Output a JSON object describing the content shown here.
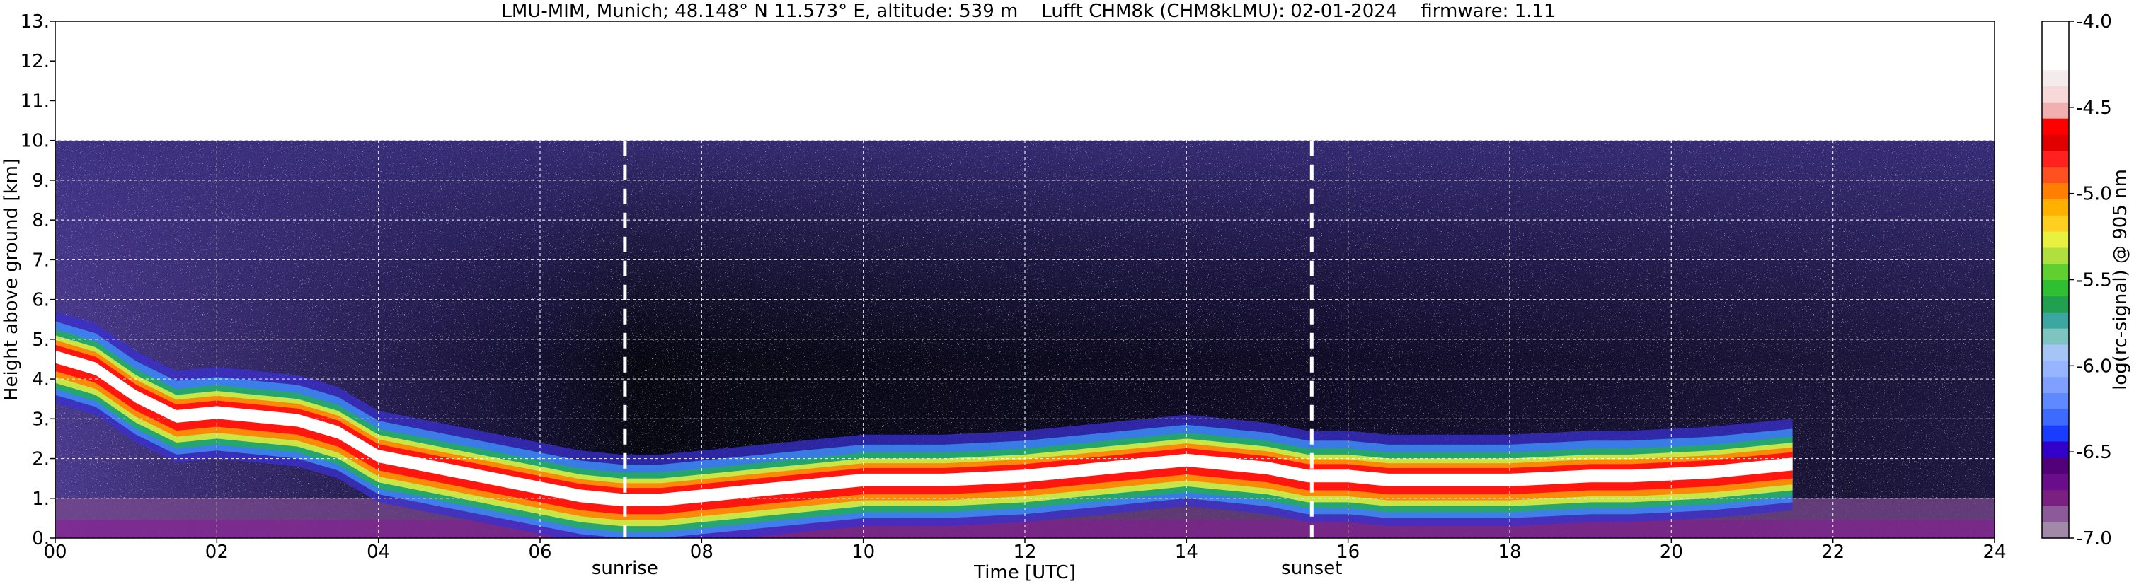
{
  "chart_data": {
    "type": "heatmap",
    "title": "LMU-MIM, Munich; 48.148° N 11.573° E, altitude: 539 m    Lufft CHM8k (CHM8kLMU): 02-01-2024    firmware: 1.11",
    "xlabel": "Time [UTC]",
    "ylabel": "Height above ground [km]",
    "xlim": [
      0,
      24
    ],
    "ylim": [
      0,
      13
    ],
    "x_ticks": [
      "00",
      "02",
      "04",
      "06",
      "08",
      "10",
      "12",
      "14",
      "16",
      "18",
      "20",
      "22",
      "24"
    ],
    "y_ticks": [
      "0.",
      "1.",
      "2.",
      "3.",
      "4.",
      "5.",
      "6.",
      "7.",
      "8.",
      "9.",
      "10.",
      "11.",
      "12.",
      "13."
    ],
    "grid": true,
    "data_top_km": 10,
    "colorbar": {
      "label": "log(rc-signal) @ 905 nm",
      "range": [
        -7.0,
        -4.0
      ],
      "ticks": [
        "-4.0",
        "-4.5",
        "-5.0",
        "-5.5",
        "-6.0",
        "-6.5",
        "-7.0"
      ],
      "colors": [
        "#a08aa8",
        "#8c5a98",
        "#7a2080",
        "#6a0d8c",
        "#52007a",
        "#3200c8",
        "#1a3cff",
        "#3f6aff",
        "#5f8aff",
        "#7fa0ff",
        "#96b4ff",
        "#a6c4f4",
        "#7fc4c0",
        "#3aa8a0",
        "#20a050",
        "#2ec030",
        "#60d030",
        "#b0e040",
        "#e8f040",
        "#ffd020",
        "#ffb000",
        "#ff8000",
        "#ff5020",
        "#ff2020",
        "#e00000",
        "#ff0000",
        "#f0b0b0",
        "#f8d8d8",
        "#f4ecec",
        "#ffffff",
        "#ffffff",
        "#ffffff"
      ]
    },
    "annotations": [
      {
        "text": "sunrise",
        "time": 7.05
      },
      {
        "text": "sunset",
        "time": 15.55
      }
    ],
    "layers": [
      {
        "name": "",
        "times": [
          0,
          0.5,
          1,
          1.5,
          2,
          2.5,
          3,
          3.5,
          4,
          4.5,
          5,
          5.5,
          6,
          6.5,
          7,
          7.5,
          8,
          8.5,
          9,
          9.5,
          10,
          10.5,
          11,
          11.5,
          12,
          12.5,
          13,
          13.5,
          14,
          14.5,
          15,
          15.5,
          16,
          16.5,
          17,
          17.5,
          18,
          18.5,
          19,
          19.5,
          20,
          20.5,
          21,
          21.5
        ],
        "heights": [
          4.6,
          4.3,
          3.6,
          3.1,
          3.2,
          3.1,
          3.0,
          2.7,
          2.1,
          1.9,
          1.7,
          1.5,
          1.3,
          1.1,
          1.0,
          1.0,
          1.1,
          1.2,
          1.3,
          1.4,
          1.5,
          1.5,
          1.5,
          1.55,
          1.6,
          1.7,
          1.8,
          1.9,
          2.0,
          1.9,
          1.8,
          1.6,
          1.6,
          1.5,
          1.5,
          1.5,
          1.5,
          1.55,
          1.6,
          1.6,
          1.65,
          1.7,
          1.8,
          1.9
        ]
      }
    ]
  }
}
